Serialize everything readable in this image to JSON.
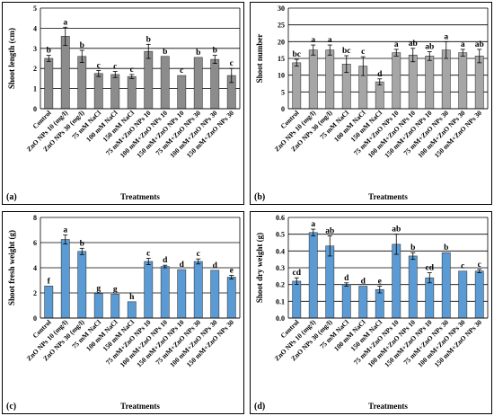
{
  "categories": [
    "Control",
    "ZnO NPs 10 (mg/l)",
    "ZnO NPs 30 (mg/l)",
    "75 mM NaCl",
    "100 mM NaCl",
    "150 mM NaCl",
    "75 mM+ZnO NPs 10",
    "100 mM+ZnO NPs 10",
    "150 mM+ZnO NPs 10",
    "75 mM+ZnO NPs 30",
    "100 mM+ZnO NPs 30",
    "150 mM+ZnO NPs 30"
  ],
  "chart_data": [
    {
      "panel_label": "(a)",
      "type": "bar",
      "bar_color": "#8c8c8c",
      "ylabel": "Shoot length (cm)",
      "xlabel": "Treatments",
      "ylim": [
        0,
        5
      ],
      "yticks": [
        0,
        1,
        2,
        3,
        4,
        5
      ],
      "grid": true,
      "values": [
        2.5,
        3.6,
        2.6,
        1.75,
        1.7,
        1.6,
        2.85,
        2.6,
        1.65,
        2.55,
        2.45,
        1.65
      ],
      "errors": [
        0.15,
        0.45,
        0.3,
        0.15,
        0.15,
        0.1,
        0.35,
        0.0,
        0.0,
        0.0,
        0.2,
        0.35
      ],
      "letters": [
        "b",
        "a",
        "b",
        "c",
        "c",
        "c",
        "b",
        "b",
        "c",
        "b",
        "b",
        "c"
      ]
    },
    {
      "panel_label": "(b)",
      "type": "bar",
      "bar_color": "#a6a6a6",
      "ylabel": "Shoot number",
      "xlabel": "Treatments",
      "ylim": [
        0,
        30
      ],
      "yticks": [
        0,
        5,
        10,
        15,
        20,
        25,
        30
      ],
      "grid": true,
      "values": [
        13.7,
        17.5,
        17.5,
        13.3,
        12.7,
        8.0,
        16.7,
        16.0,
        15.7,
        17.5,
        16.7,
        15.7
      ],
      "errors": [
        1.0,
        1.5,
        1.5,
        2.5,
        2.8,
        0.9,
        1.0,
        2.0,
        1.3,
        2.5,
        1.0,
        2.0
      ],
      "letters": [
        "bc",
        "a",
        "a",
        "bc",
        "c",
        "d",
        "a",
        "ab",
        "ab",
        "a",
        "a",
        "ab"
      ]
    },
    {
      "panel_label": "(c)",
      "type": "bar",
      "bar_color": "#5b9bd5",
      "ylabel": "Shoot fresh weight (g)",
      "xlabel": "Treatments",
      "ylim": [
        0,
        8
      ],
      "yticks": [
        0,
        2,
        4,
        6,
        8
      ],
      "grid": true,
      "values": [
        2.55,
        6.25,
        5.3,
        1.95,
        1.9,
        1.3,
        4.5,
        4.1,
        3.85,
        4.5,
        3.8,
        3.25
      ],
      "errors": [
        0.0,
        0.35,
        0.25,
        0.0,
        0.0,
        0.0,
        0.25,
        0.1,
        0.0,
        0.2,
        0.0,
        0.15
      ],
      "letters": [
        "f",
        "a",
        "b",
        "g",
        "g",
        "h",
        "c",
        "d",
        "d",
        "c",
        "d",
        "e"
      ]
    },
    {
      "panel_label": "(d)",
      "type": "bar",
      "bar_color": "#5b9bd5",
      "ylabel": "Shoot dry weight (g)",
      "xlabel": "Treatments",
      "ylim": [
        0,
        0.6
      ],
      "yticks": [
        0,
        0.1,
        0.2,
        0.3,
        0.4,
        0.5,
        0.6
      ],
      "grid": true,
      "values": [
        0.22,
        0.51,
        0.43,
        0.2,
        0.19,
        0.17,
        0.44,
        0.37,
        0.24,
        0.39,
        0.28,
        0.28
      ],
      "errors": [
        0.02,
        0.02,
        0.06,
        0.01,
        0.0,
        0.02,
        0.06,
        0.02,
        0.03,
        0.0,
        0.0,
        0.01
      ],
      "letters": [
        "cd",
        "a",
        "ab",
        "d",
        "d",
        "e",
        "ab",
        "b",
        "cd",
        "b",
        "c",
        "c"
      ]
    }
  ]
}
